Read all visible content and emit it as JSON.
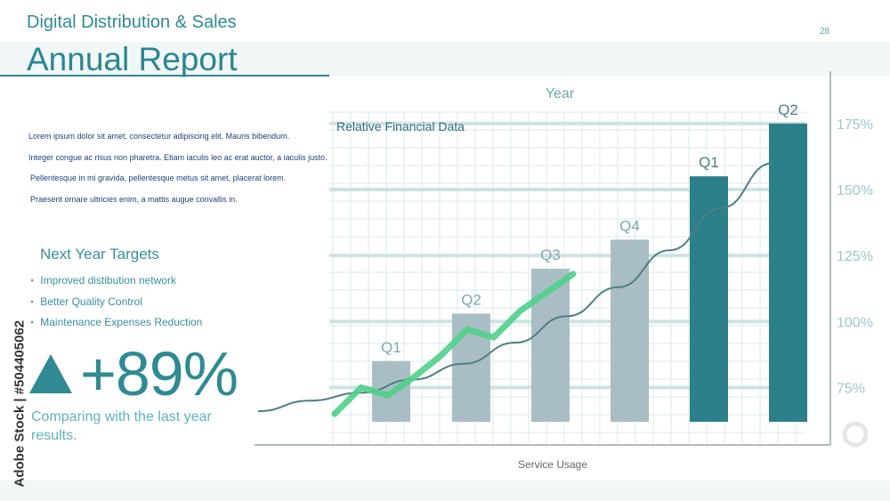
{
  "header": {
    "subtitle": "Digital Distribution & Sales",
    "title": "Annual Report",
    "page_number": "28"
  },
  "intro_lines": [
    "Lorem ipsum dolor sit amet, consectetur adipiscing elit. Mauris bibendum.",
    "Integer congue ac risus non pharetra. Etiam iaculis leo ac erat auctor, a iaculis justo.",
    "Pellentesque in mi gravida, pellentesque metus sit amet, placerat lorem.",
    "Praesent ornare ultricies enim, a mattis augue convallis in."
  ],
  "targets": {
    "title": "Next Year Targets",
    "items": [
      "Improved distibution network",
      "Better Quality Control",
      "Maintenance Expenses Reduction"
    ]
  },
  "kpi": {
    "value": "+89%",
    "caption": "Comparing with the last year results."
  },
  "stock_label": "Adobe Stock | #504405062",
  "colors": {
    "teal": "#2f8a93",
    "bar_light": "#a9bec4",
    "bar_dark": "#2c8089",
    "green_line": "#4fd08a",
    "curve": "#4f7f85",
    "grid": "#dbe8ea",
    "band": "#cfe1e3"
  },
  "chart_data": {
    "type": "bar",
    "title": "Relative Financial Data",
    "top_label": "Year",
    "xlabel": "Service Usage",
    "ylim": [
      62,
      180
    ],
    "y_ticks": [
      75,
      100,
      125,
      150,
      175
    ],
    "y_tick_labels": [
      "75%",
      "100%",
      "125%",
      "150%",
      "175%"
    ],
    "categories": [
      "Q1",
      "Q2",
      "Q3",
      "Q4",
      "Q1",
      "Q2"
    ],
    "values": [
      85,
      103,
      120,
      131,
      155,
      175
    ],
    "highlight": [
      false,
      false,
      false,
      false,
      true,
      true
    ],
    "line_series": {
      "values": [
        65,
        75,
        72,
        79,
        87,
        97,
        94,
        104,
        111,
        118
      ]
    },
    "trend_curve": {
      "values": [
        66,
        70,
        73,
        78,
        84,
        92,
        102,
        113,
        127,
        143,
        160
      ]
    }
  }
}
